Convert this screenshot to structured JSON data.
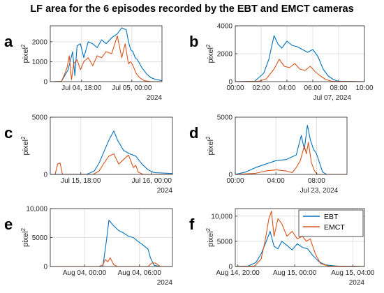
{
  "title": "LF area for the 6 episodes recorded by the EBT and EMCT cameras",
  "colors": {
    "EBT": "#0072BD",
    "EMCT": "#D95319"
  },
  "chart_data": [
    {
      "panel": "a",
      "type": "line",
      "ylabel": "pixel",
      "ylabel_sup": "2",
      "ylim": [
        0,
        2800
      ],
      "yticks": [
        0,
        1000,
        2000
      ],
      "ytick_labels": [
        "0",
        "1000",
        "2000"
      ],
      "xlim": [
        0,
        1
      ],
      "xticks": [
        0.28,
        0.73
      ],
      "xtick_labels": [
        "Jul 04, 18:00",
        "Jul 05, 00:00"
      ],
      "year": "2024",
      "series": [
        {
          "name": "EBT",
          "x": [
            0.02,
            0.1,
            0.16,
            0.2,
            0.22,
            0.24,
            0.27,
            0.3,
            0.34,
            0.38,
            0.42,
            0.46,
            0.5,
            0.55,
            0.6,
            0.64,
            0.68,
            0.7,
            0.72,
            0.74,
            0.76,
            0.78,
            0.82,
            0.86,
            0.9,
            0.95,
            1.0
          ],
          "y": [
            0,
            10,
            600,
            1500,
            300,
            1800,
            1900,
            1200,
            2000,
            1900,
            1700,
            2100,
            1900,
            2200,
            2400,
            2700,
            2600,
            2000,
            1600,
            1500,
            1200,
            1100,
            700,
            400,
            200,
            100,
            50
          ]
        },
        {
          "name": "EMCT",
          "x": [
            0.02,
            0.1,
            0.13,
            0.15,
            0.17,
            0.19,
            0.21,
            0.24,
            0.27,
            0.3,
            0.34,
            0.38,
            0.42,
            0.46,
            0.5,
            0.55,
            0.6,
            0.64,
            0.67,
            0.7,
            0.72,
            0.74,
            0.77,
            0.8,
            0.84,
            0.9,
            1.0
          ],
          "y": [
            0,
            10,
            400,
            700,
            1300,
            100,
            900,
            1100,
            600,
            1000,
            1200,
            800,
            1300,
            1200,
            1500,
            1400,
            2300,
            1200,
            1900,
            900,
            1000,
            800,
            400,
            200,
            50,
            0,
            0
          ]
        }
      ]
    },
    {
      "panel": "b",
      "type": "line",
      "ylabel": "pixel",
      "ylabel_sup": "2",
      "ylim": [
        0,
        4000
      ],
      "yticks": [
        0,
        2000,
        4000
      ],
      "ytick_labels": [
        "0",
        "2000",
        "4000"
      ],
      "xlim": [
        0,
        10
      ],
      "xticks": [
        0,
        2,
        4,
        6,
        8,
        10
      ],
      "xtick_labels": [
        "00:00",
        "02:00",
        "04:00",
        "06:00",
        "08:00",
        "10:00"
      ],
      "sub_label": "Jul 07, 2024",
      "series": [
        {
          "name": "EBT",
          "x": [
            0,
            1.5,
            2.2,
            2.6,
            3,
            3.3,
            3.6,
            4,
            4.4,
            4.8,
            5.2,
            5.6,
            6,
            6.4,
            6.8,
            7.2,
            7.6,
            8,
            10
          ],
          "y": [
            0,
            30,
            600,
            1600,
            3300,
            2700,
            2400,
            2900,
            2600,
            2500,
            2300,
            2100,
            2300,
            1800,
            900,
            400,
            150,
            20,
            0
          ]
        },
        {
          "name": "EMCT",
          "x": [
            0,
            1.8,
            2.4,
            3,
            3.4,
            3.8,
            4.2,
            4.6,
            5,
            5.4,
            5.8,
            6.2,
            6.6,
            7,
            7.5,
            10
          ],
          "y": [
            0,
            20,
            200,
            900,
            1600,
            1100,
            1000,
            1300,
            900,
            800,
            1100,
            700,
            400,
            150,
            20,
            0
          ]
        }
      ]
    },
    {
      "panel": "c",
      "type": "line",
      "ylabel": "pixel",
      "ylabel_sup": "2",
      "ylim": [
        0,
        5000
      ],
      "yticks": [
        0,
        5000
      ],
      "ytick_labels": [
        "0",
        "5000"
      ],
      "xlim": [
        0,
        1
      ],
      "xticks": [
        0.25,
        0.83
      ],
      "xtick_labels": [
        "Jul 15, 18:00",
        "Jul 16, 00:00"
      ],
      "year": "2024",
      "series": [
        {
          "name": "EBT",
          "x": [
            0,
            0.3,
            0.36,
            0.4,
            0.44,
            0.48,
            0.52,
            0.55,
            0.6,
            0.65,
            0.7,
            0.75,
            0.8,
            0.85,
            1.0
          ],
          "y": [
            0,
            10,
            300,
            1000,
            2000,
            3000,
            3800,
            3000,
            2100,
            1800,
            1600,
            900,
            400,
            150,
            80
          ]
        },
        {
          "name": "EMCT",
          "x": [
            0.04,
            0.06,
            0.08,
            0.09,
            0.1,
            0.35,
            0.4,
            0.44,
            0.48,
            0.52,
            0.56,
            0.6,
            0.64,
            0.68,
            0.7,
            0.72,
            0.76,
            1.0
          ],
          "y": [
            0,
            900,
            1000,
            500,
            0,
            0,
            300,
            1000,
            1600,
            1800,
            900,
            1300,
            1700,
            600,
            800,
            200,
            0,
            0
          ]
        }
      ]
    },
    {
      "panel": "d",
      "type": "line",
      "ylabel": "pixel",
      "ylabel_sup": "2",
      "ylim": [
        0,
        5000
      ],
      "yticks": [
        0,
        5000
      ],
      "ytick_labels": [
        "0",
        "5000"
      ],
      "xlim": [
        0,
        11
      ],
      "xticks": [
        0,
        4,
        8
      ],
      "xtick_labels": [
        "00:00",
        "04:00",
        "08:00"
      ],
      "sub_label": "Jul 23, 2024",
      "series": [
        {
          "name": "EBT",
          "x": [
            0,
            1,
            2,
            3,
            4,
            5,
            6,
            6.5,
            6.8,
            7.1,
            7.4,
            7.7,
            8,
            8.3,
            8.6,
            9,
            11
          ],
          "y": [
            0,
            200,
            600,
            900,
            1200,
            1300,
            1700,
            3400,
            2200,
            4300,
            3000,
            2200,
            1800,
            1000,
            200,
            0,
            0
          ]
        },
        {
          "name": "EMCT",
          "x": [
            0,
            2,
            3,
            4,
            5,
            5.6,
            6,
            6.4,
            6.8,
            7,
            7.2,
            7.5,
            7.8,
            8.1,
            11
          ],
          "y": [
            0,
            100,
            300,
            400,
            300,
            150,
            600,
            1200,
            2500,
            1800,
            2800,
            1000,
            300,
            0,
            0
          ]
        }
      ]
    },
    {
      "panel": "e",
      "type": "line",
      "ylabel": "pixel",
      "ylabel_sup": "2",
      "ylim": [
        0,
        10000
      ],
      "yticks": [
        0,
        5000,
        10000
      ],
      "ytick_labels": [
        "0",
        "5000",
        "10,000"
      ],
      "xlim": [
        0,
        1
      ],
      "xticks": [
        0.28,
        0.73
      ],
      "xtick_labels": [
        "Aug 04, 00:00",
        "Aug 04, 06:00"
      ],
      "year": "2024",
      "series": [
        {
          "name": "EBT",
          "x": [
            0,
            0.43,
            0.46,
            0.48,
            0.52,
            0.56,
            0.6,
            0.64,
            0.68,
            0.72,
            0.76,
            0.8,
            0.82,
            0.85,
            0.9,
            1.0
          ],
          "y": [
            0,
            0,
            4500,
            8000,
            7000,
            6200,
            5800,
            5200,
            5000,
            4300,
            3700,
            3000,
            1500,
            200,
            0,
            0
          ]
        },
        {
          "name": "EMCT",
          "x": [
            0,
            0.4,
            0.43,
            0.45,
            0.47,
            0.49,
            0.52,
            0.55,
            0.6,
            0.8,
            0.83,
            0.86,
            0.9,
            1.0
          ],
          "y": [
            0,
            0,
            300,
            1200,
            800,
            1500,
            300,
            0,
            0,
            0,
            600,
            600,
            0,
            0
          ]
        }
      ]
    },
    {
      "panel": "f",
      "type": "line",
      "ylabel": "pixel",
      "ylabel_sup": "2",
      "ylim": [
        0,
        11500
      ],
      "yticks": [
        0,
        5000,
        10000
      ],
      "ytick_labels": [
        "0",
        "5000",
        "10,000"
      ],
      "xlim": [
        0,
        1
      ],
      "xticks": [
        0.02,
        0.46,
        0.91
      ],
      "xtick_labels": [
        "Aug 14, 20:00",
        "Aug 15, 00:00",
        "Aug 15, 04:00"
      ],
      "year": "2024",
      "legend": [
        "EBT",
        "EMCT"
      ],
      "legend_loc": "top-right",
      "series": [
        {
          "name": "EBT",
          "x": [
            0,
            0.1,
            0.16,
            0.2,
            0.24,
            0.27,
            0.3,
            0.33,
            0.36,
            0.4,
            0.44,
            0.48,
            0.52,
            0.56,
            0.6,
            0.65,
            0.7,
            0.8,
            1.0
          ],
          "y": [
            0,
            100,
            800,
            2500,
            5000,
            7000,
            4000,
            3500,
            5000,
            4200,
            3300,
            4500,
            3800,
            3500,
            2200,
            900,
            300,
            50,
            0
          ]
        },
        {
          "name": "EMCT",
          "x": [
            0,
            0.15,
            0.2,
            0.23,
            0.26,
            0.28,
            0.3,
            0.33,
            0.36,
            0.4,
            0.44,
            0.48,
            0.52,
            0.55,
            0.58,
            0.62,
            0.66,
            0.72,
            1.0
          ],
          "y": [
            0,
            100,
            1500,
            5000,
            9500,
            11000,
            6000,
            9500,
            8500,
            6000,
            7000,
            5500,
            6000,
            5000,
            5500,
            2500,
            600,
            100,
            0
          ]
        }
      ]
    }
  ]
}
